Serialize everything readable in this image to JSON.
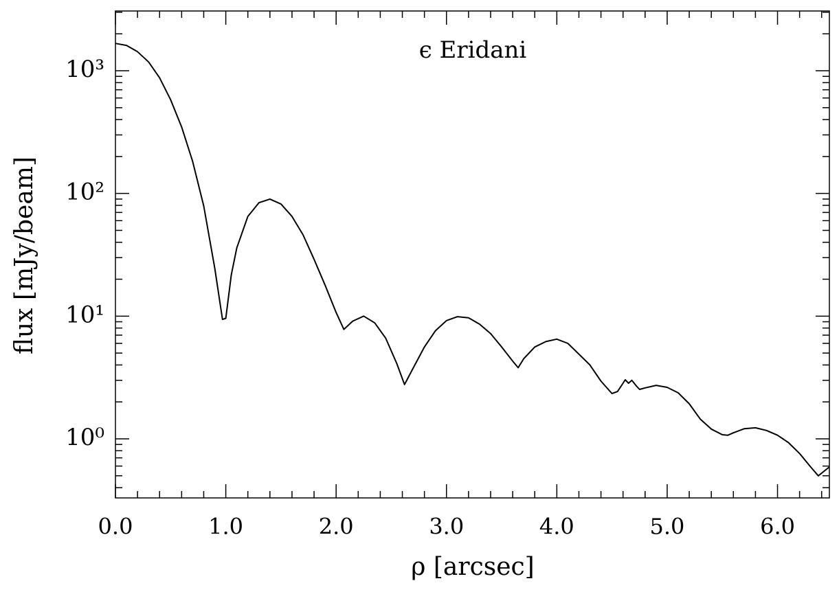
{
  "chart_data": {
    "type": "line",
    "title": "ϵ Eridani",
    "xlabel": "ρ [arcsec]",
    "ylabel": "flux [mJy/beam]",
    "log_y": true,
    "color": "#000000",
    "x": [
      0,
      0.1,
      0.2,
      0.3,
      0.4,
      0.5,
      0.6,
      0.7,
      0.8,
      0.9,
      0.97,
      1.0,
      1.05,
      1.1,
      1.2,
      1.3,
      1.4,
      1.5,
      1.6,
      1.7,
      1.8,
      1.9,
      2.0,
      2.07,
      2.15,
      2.25,
      2.35,
      2.45,
      2.55,
      2.62,
      2.7,
      2.8,
      2.9,
      3.0,
      3.1,
      3.2,
      3.3,
      3.4,
      3.5,
      3.6,
      3.65,
      3.7,
      3.8,
      3.9,
      4.0,
      4.1,
      4.2,
      4.3,
      4.4,
      4.5,
      4.55,
      4.6,
      4.62,
      4.65,
      4.68,
      4.72,
      4.75,
      4.8,
      4.9,
      5.0,
      5.1,
      5.2,
      5.3,
      5.4,
      5.5,
      5.55,
      5.6,
      5.7,
      5.8,
      5.9,
      6.0,
      6.1,
      6.2,
      6.3,
      6.37,
      6.47
    ],
    "values": [
      1670,
      1610,
      1430,
      1180,
      877,
      581,
      347,
      182,
      79,
      24.7,
      9.4,
      9.6,
      21.7,
      36,
      65,
      84,
      90,
      82,
      65,
      46,
      29,
      17.9,
      10.7,
      7.8,
      9.1,
      10,
      8.8,
      6.6,
      4.1,
      2.77,
      3.8,
      5.6,
      7.6,
      9.2,
      9.9,
      9.7,
      8.6,
      7.2,
      5.6,
      4.3,
      3.8,
      4.5,
      5.6,
      6.2,
      6.5,
      6.0,
      4.9,
      4.0,
      2.95,
      2.34,
      2.43,
      2.84,
      3.03,
      2.84,
      3.0,
      2.7,
      2.53,
      2.6,
      2.73,
      2.63,
      2.37,
      1.93,
      1.45,
      1.2,
      1.08,
      1.07,
      1.12,
      1.21,
      1.23,
      1.17,
      1.07,
      0.93,
      0.76,
      0.59,
      0.5,
      0.59
    ],
    "xlim": [
      0,
      6.47
    ],
    "ylim": [
      0.33,
      3070
    ],
    "xticks": [
      {
        "value": 0,
        "label": "0.0"
      },
      {
        "value": 1,
        "label": "1.0"
      },
      {
        "value": 2,
        "label": "2.0"
      },
      {
        "value": 3,
        "label": "3.0"
      },
      {
        "value": 4,
        "label": "4.0"
      },
      {
        "value": 5,
        "label": "5.0"
      },
      {
        "value": 6,
        "label": "6.0"
      }
    ],
    "xminorticks": [
      0.2,
      0.4,
      0.6,
      0.8,
      1.2,
      1.4,
      1.6,
      1.8,
      2.2,
      2.4,
      2.6,
      2.8,
      3.2,
      3.4,
      3.6,
      3.8,
      4.2,
      4.4,
      4.6,
      4.8,
      5.2,
      5.4,
      5.6,
      5.8,
      6.2,
      6.4
    ],
    "yticks": [
      {
        "value": 1,
        "label": "10⁰"
      },
      {
        "value": 10,
        "label": "10¹"
      },
      {
        "value": 100,
        "label": "10²"
      },
      {
        "value": 1000,
        "label": "10³"
      }
    ],
    "yminorticks": [
      0.4,
      0.5,
      0.6,
      0.7,
      0.8,
      0.9,
      2,
      3,
      4,
      5,
      6,
      7,
      8,
      9,
      20,
      30,
      40,
      50,
      60,
      70,
      80,
      90,
      200,
      300,
      400,
      500,
      600,
      700,
      800,
      900,
      2000,
      3000
    ]
  }
}
